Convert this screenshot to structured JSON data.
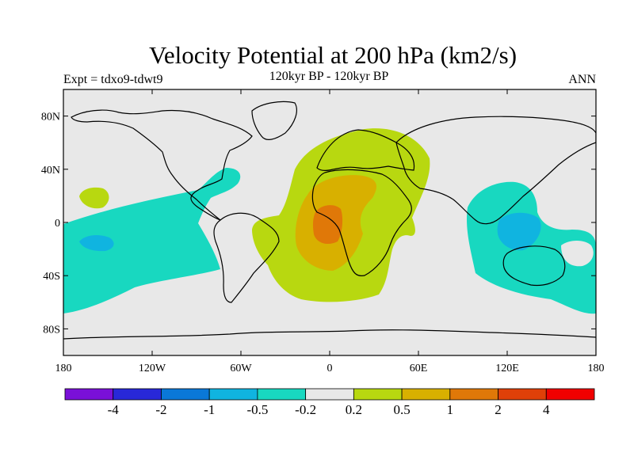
{
  "header": {
    "title": "Velocity Potential at 200 hPa (km2/s)",
    "subtitle": "120kyr BP - 120kyr BP",
    "experiment": "Expt = tdxo9-tdwt9",
    "season": "ANN"
  },
  "map": {
    "lat_ticks": [
      "80N",
      "40N",
      "0",
      "40S",
      "80S"
    ],
    "lon_ticks": [
      "180",
      "120W",
      "60W",
      "0",
      "60E",
      "120E",
      "180"
    ],
    "background_color": "#e8e8e8",
    "coastline_color": "#000000"
  },
  "colorbar": {
    "colors": [
      "#7a10d8",
      "#2828d8",
      "#0a78d8",
      "#10b4e0",
      "#18d8c0",
      "#e8e8e8",
      "#b8d810",
      "#d8b000",
      "#e07808",
      "#e04008",
      "#f00000"
    ],
    "labels": [
      "-4",
      "-2",
      "-1",
      "-0.5",
      "-0.2",
      "0.2",
      "0.5",
      "1",
      "2",
      "4"
    ]
  }
}
